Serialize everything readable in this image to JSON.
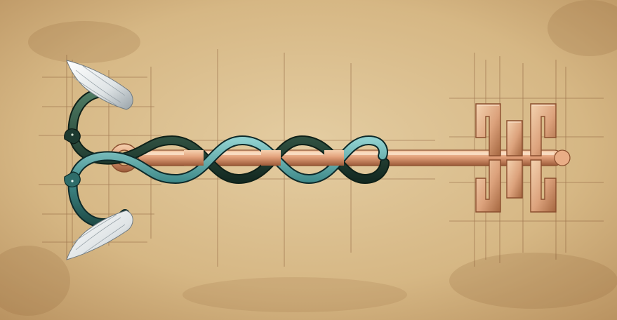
{
  "artwork": {
    "subject": "caduceus-key",
    "palette": {
      "parchment_light": "#e2c99c",
      "parchment_mid": "#d4b482",
      "parchment_dark": "#b88f5a",
      "guide_line": "#7a4a2a",
      "copper_light": "#f4c9a1",
      "copper_mid": "#d9926a",
      "copper_dark": "#9b5a38",
      "serpent_dark": "#1d3a30",
      "serpent_teal": "#3f8a8a",
      "serpent_light": "#7cc4c4",
      "wing_light": "#f2f2f2",
      "wing_shadow": "#9aa4aa"
    }
  }
}
